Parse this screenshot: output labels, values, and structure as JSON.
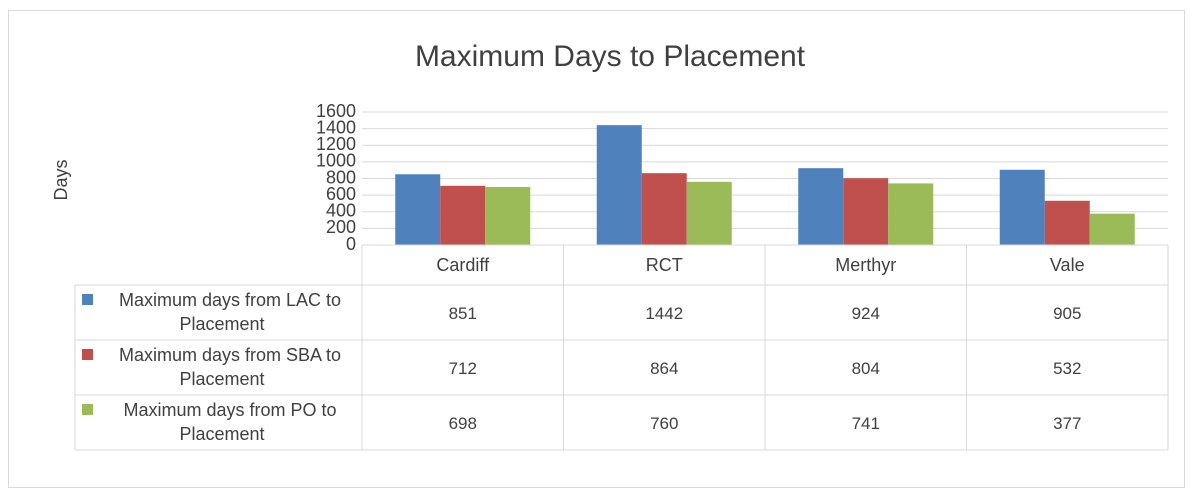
{
  "chart_data": {
    "type": "bar",
    "title": "Maximum Days to Placement",
    "y_label": "Days",
    "categories": [
      "Cardiff",
      "RCT",
      "Merthyr",
      "Vale"
    ],
    "series": [
      {
        "name": "Maximum days from LAC to Placement",
        "color": "#4f81bd",
        "values": [
          851,
          1442,
          924,
          905
        ]
      },
      {
        "name": "Maximum days from SBA to Placement",
        "color": "#c0504d",
        "values": [
          712,
          864,
          804,
          532
        ]
      },
      {
        "name": "Maximum days from PO to Placement",
        "color": "#9bbb59",
        "values": [
          698,
          760,
          741,
          377
        ]
      }
    ],
    "ylim": [
      0,
      1600
    ],
    "yticks": [
      0,
      200,
      400,
      600,
      800,
      1000,
      1200,
      1400,
      1600
    ],
    "grid": true,
    "data_table": true
  }
}
